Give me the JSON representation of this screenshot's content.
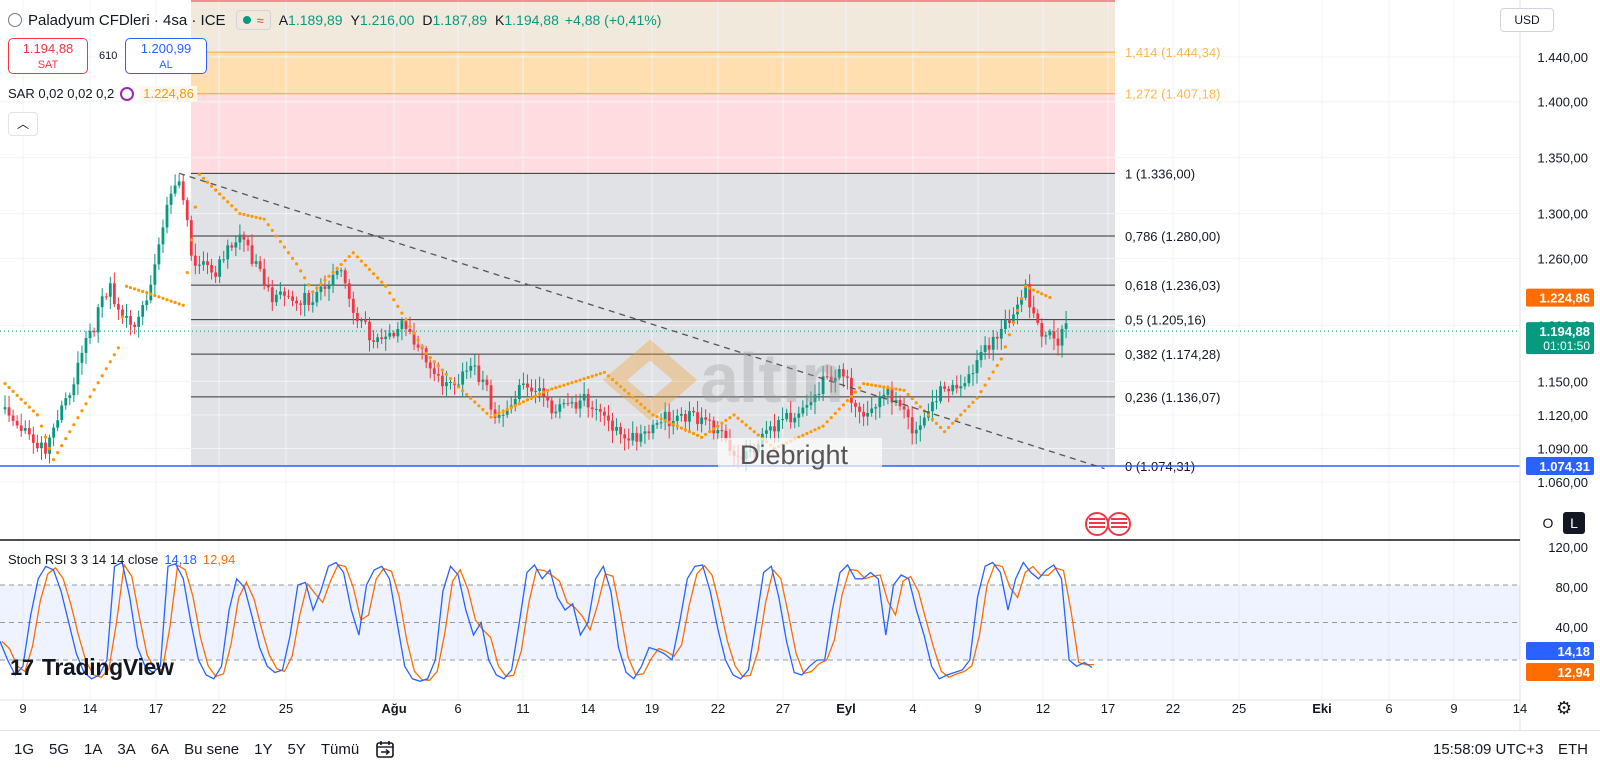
{
  "header": {
    "symbol": "Paladyum CFDleri · 4sa · ICE",
    "open_label": "A",
    "open": "1.189,89",
    "high_label": "Y",
    "high": "1.216,00",
    "low_label": "D",
    "low": "1.187,89",
    "close_label": "K",
    "close": "1.194,88",
    "change": "+4,88 (+0,41%)",
    "sell_price": "1.194,88",
    "sell_label": "SAT",
    "spread": "610",
    "buy_price": "1.200,99",
    "buy_label": "AL",
    "collapse_icon": "chevron-up-icon",
    "currency": "USD"
  },
  "indicators": {
    "sar_label": "SAR 0,02 0,02 0,2",
    "sar_value": "1.224,86",
    "stoch_label": "Stoch RSI 3 3 14 14 close",
    "stoch_k": "14,18",
    "stoch_d": "12,94"
  },
  "watermark": {
    "brand": "altın",
    "author": "Diebright",
    "platform": "TradingView"
  },
  "axis_buttons": {
    "o": "O",
    "l": "L"
  },
  "bottom_bar": {
    "ranges": [
      "1G",
      "5G",
      "1A",
      "3A",
      "6A",
      "Bu sene",
      "1Y",
      "5Y",
      "Tümü"
    ],
    "time": "15:58:09 UTC+3",
    "session": "ETH"
  },
  "chart_data": [
    {
      "type": "candlestick",
      "price_axis": {
        "ticks": [
          1060,
          1090,
          1120,
          1150,
          1200,
          1260,
          1300,
          1350,
          1400,
          1440
        ],
        "tick_labels": [
          "1.060,00",
          "1.090,00",
          "1.120,00",
          "1.150,00",
          "1.200,00",
          "1.260,00",
          "1.300,00",
          "1.350,00",
          "1.400,00",
          "1.440,00"
        ]
      },
      "time_axis": {
        "labels": [
          "9",
          "14",
          "17",
          "22",
          "25",
          "Ağu",
          "6",
          "11",
          "14",
          "19",
          "22",
          "27",
          "Eyl",
          "4",
          "9",
          "12",
          "17",
          "22",
          "25",
          "Eki",
          "6",
          "9",
          "14"
        ],
        "bold": [
          "Ağu",
          "Eyl",
          "Eki"
        ]
      },
      "price_scale_labels": [
        {
          "value": "1.224,86",
          "color": "#ff6d00"
        },
        {
          "value": "1.194,88",
          "sub": "01:01:50",
          "color": "#089981"
        },
        {
          "value": "1.074,31",
          "color": "#2962ff"
        }
      ],
      "fibonacci": [
        {
          "ratio": "1,414",
          "price": 1444.34,
          "label": "1,414 (1.444,34)",
          "color": "#ffb74d"
        },
        {
          "ratio": "1,272",
          "price": 1407.18,
          "label": "1,272 (1.407,18)",
          "color": "#ffb74d"
        },
        {
          "ratio": "1",
          "price": 1336.0,
          "label": "1 (1.336,00)",
          "color": "#131722"
        },
        {
          "ratio": "0,786",
          "price": 1280.0,
          "label": "0,786 (1.280,00)",
          "color": "#131722"
        },
        {
          "ratio": "0,618",
          "price": 1236.03,
          "label": "0,618 (1.236,03)",
          "color": "#131722"
        },
        {
          "ratio": "0,5",
          "price": 1205.16,
          "label": "0,5 (1.205,16)",
          "color": "#131722"
        },
        {
          "ratio": "0,382",
          "price": 1174.28,
          "label": "0,382 (1.174,28)",
          "color": "#131722"
        },
        {
          "ratio": "0,236",
          "price": 1136.07,
          "label": "0,236 (1.136,07)",
          "color": "#131722"
        },
        {
          "ratio": "0",
          "price": 1074.31,
          "label": "0 (1.074,31)",
          "color": "#131722"
        }
      ],
      "horizontal_line": 1074.31,
      "last_price": 1194.88,
      "close_path": [
        {
          "i": 0,
          "c": 1125
        },
        {
          "i": 5,
          "c": 1110
        },
        {
          "i": 10,
          "c": 1085
        },
        {
          "i": 14,
          "c": 1120
        },
        {
          "i": 20,
          "c": 1190
        },
        {
          "i": 26,
          "c": 1230
        },
        {
          "i": 28,
          "c": 1205
        },
        {
          "i": 32,
          "c": 1205
        },
        {
          "i": 36,
          "c": 1240
        },
        {
          "i": 40,
          "c": 1300
        },
        {
          "i": 43,
          "c": 1328
        },
        {
          "i": 46,
          "c": 1265
        },
        {
          "i": 52,
          "c": 1250
        },
        {
          "i": 58,
          "c": 1275
        },
        {
          "i": 62,
          "c": 1258
        },
        {
          "i": 66,
          "c": 1230
        },
        {
          "i": 72,
          "c": 1215
        },
        {
          "i": 78,
          "c": 1235
        },
        {
          "i": 82,
          "c": 1255
        },
        {
          "i": 86,
          "c": 1205
        },
        {
          "i": 92,
          "c": 1190
        },
        {
          "i": 98,
          "c": 1200
        },
        {
          "i": 104,
          "c": 1165
        },
        {
          "i": 110,
          "c": 1150
        },
        {
          "i": 116,
          "c": 1155
        },
        {
          "i": 122,
          "c": 1120
        },
        {
          "i": 128,
          "c": 1145
        },
        {
          "i": 134,
          "c": 1130
        },
        {
          "i": 140,
          "c": 1138
        },
        {
          "i": 146,
          "c": 1120
        },
        {
          "i": 152,
          "c": 1108
        },
        {
          "i": 158,
          "c": 1100
        },
        {
          "i": 164,
          "c": 1118
        },
        {
          "i": 170,
          "c": 1125
        },
        {
          "i": 176,
          "c": 1098
        },
        {
          "i": 182,
          "c": 1088
        },
        {
          "i": 188,
          "c": 1100
        },
        {
          "i": 194,
          "c": 1115
        },
        {
          "i": 200,
          "c": 1142
        },
        {
          "i": 206,
          "c": 1152
        },
        {
          "i": 212,
          "c": 1128
        },
        {
          "i": 218,
          "c": 1135
        },
        {
          "i": 224,
          "c": 1105
        },
        {
          "i": 230,
          "c": 1140
        },
        {
          "i": 236,
          "c": 1138
        },
        {
          "i": 242,
          "c": 1185
        },
        {
          "i": 248,
          "c": 1200
        },
        {
          "i": 252,
          "c": 1232
        },
        {
          "i": 256,
          "c": 1200
        },
        {
          "i": 260,
          "c": 1190
        },
        {
          "i": 262,
          "c": 1195
        }
      ],
      "sar_path": [
        {
          "i": 0,
          "v": 1148
        },
        {
          "i": 8,
          "v": 1120
        },
        {
          "i": 12,
          "v": 1080
        },
        {
          "i": 20,
          "v": 1130
        },
        {
          "i": 28,
          "v": 1180
        },
        {
          "i": 30,
          "v": 1235
        },
        {
          "i": 36,
          "v": 1228
        },
        {
          "i": 44,
          "v": 1218
        },
        {
          "i": 48,
          "v": 1335
        },
        {
          "i": 58,
          "v": 1300
        },
        {
          "i": 64,
          "v": 1295
        },
        {
          "i": 72,
          "v": 1255
        },
        {
          "i": 76,
          "v": 1230
        },
        {
          "i": 86,
          "v": 1265
        },
        {
          "i": 94,
          "v": 1235
        },
        {
          "i": 104,
          "v": 1175
        },
        {
          "i": 112,
          "v": 1145
        },
        {
          "i": 120,
          "v": 1118
        },
        {
          "i": 134,
          "v": 1142
        },
        {
          "i": 148,
          "v": 1158
        },
        {
          "i": 160,
          "v": 1120
        },
        {
          "i": 172,
          "v": 1100
        },
        {
          "i": 180,
          "v": 1120
        },
        {
          "i": 190,
          "v": 1090
        },
        {
          "i": 202,
          "v": 1110
        },
        {
          "i": 212,
          "v": 1148
        },
        {
          "i": 222,
          "v": 1142
        },
        {
          "i": 232,
          "v": 1105
        },
        {
          "i": 240,
          "v": 1135
        },
        {
          "i": 246,
          "v": 1170
        },
        {
          "i": 252,
          "v": 1235
        },
        {
          "i": 258,
          "v": 1225
        }
      ],
      "trendline": {
        "from": {
          "i": 43,
          "v": 1336
        },
        "to": {
          "i": 290,
          "v": 1072
        }
      }
    },
    {
      "type": "line",
      "name": "Stoch RSI",
      "y_axis": {
        "ticks": [
          40,
          80,
          120
        ],
        "tick_labels": [
          "40,00",
          "80,00",
          "120,00"
        ]
      },
      "bands": {
        "upper": 80,
        "lower": 20
      },
      "k_color": "#2962ff",
      "d_color": "#ff6d00",
      "k_value": 14.18,
      "d_value": 12.94,
      "k": [
        35,
        20,
        8,
        15,
        55,
        85,
        95,
        92,
        75,
        50,
        25,
        10,
        5,
        8,
        20,
        95,
        98,
        70,
        30,
        15,
        10,
        15,
        95,
        97,
        85,
        50,
        20,
        8,
        5,
        15,
        60,
        85,
        78,
        55,
        30,
        15,
        10,
        12,
        40,
        80,
        82,
        60,
        75,
        95,
        98,
        90,
        60,
        40,
        80,
        92,
        95,
        85,
        50,
        15,
        5,
        3,
        5,
        20,
        75,
        95,
        88,
        60,
        40,
        50,
        20,
        8,
        5,
        12,
        50,
        90,
        96,
        85,
        92,
        70,
        60,
        65,
        40,
        50,
        85,
        95,
        75,
        30,
        10,
        5,
        15,
        30,
        28,
        25,
        20,
        50,
        85,
        95,
        96,
        75,
        45,
        20,
        8,
        5,
        12,
        50,
        90,
        95,
        70,
        35,
        10,
        8,
        15,
        20,
        20,
        60,
        90,
        96,
        85,
        85,
        90,
        85,
        40,
        80,
        88,
        85,
        60,
        40,
        15,
        5,
        8,
        10,
        12,
        20,
        70,
        95,
        98,
        90,
        60,
        85,
        98,
        90,
        85,
        92,
        96,
        85,
        20,
        15,
        18,
        14
      ]
    }
  ]
}
